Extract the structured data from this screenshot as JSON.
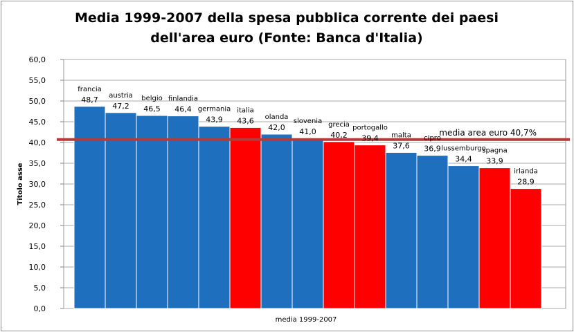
{
  "chart_data": {
    "type": "bar",
    "title_lines": [
      "Media 1999-2007 della spesa pubblica corrente dei paesi",
      "dell'area euro (Fonte: Banca d'Italia)"
    ],
    "xlabel": "media 1999-2007",
    "ylabel": "Titolo asse",
    "ylim": [
      0,
      60
    ],
    "yticks": [
      "0,0",
      "5,0",
      "10,0",
      "15,0",
      "20,0",
      "25,0",
      "30,0",
      "35,0",
      "40,0",
      "45,0",
      "50,0",
      "55,0",
      "60,0"
    ],
    "grid": true,
    "bars": [
      {
        "name": "francia",
        "value": 48.7,
        "label": "48,7",
        "color": "#1f6fbf"
      },
      {
        "name": "austria",
        "value": 47.2,
        "label": "47,2",
        "color": "#1f6fbf"
      },
      {
        "name": "belgio",
        "value": 46.5,
        "label": "46,5",
        "color": "#1f6fbf"
      },
      {
        "name": "finlandia",
        "value": 46.4,
        "label": "46,4",
        "color": "#1f6fbf"
      },
      {
        "name": "germania",
        "value": 43.9,
        "label": "43,9",
        "color": "#1f6fbf"
      },
      {
        "name": "italia",
        "value": 43.6,
        "label": "43,6",
        "color": "#ff0000"
      },
      {
        "name": "olanda",
        "value": 42.0,
        "label": "42,0",
        "color": "#1f6fbf"
      },
      {
        "name": "slovenia",
        "value": 41.0,
        "label": "41,0",
        "color": "#1f6fbf"
      },
      {
        "name": "grecia",
        "value": 40.2,
        "label": "40,2",
        "color": "#ff0000"
      },
      {
        "name": "portogallo",
        "value": 39.4,
        "label": "39,4",
        "color": "#ff0000"
      },
      {
        "name": "malta",
        "value": 37.6,
        "label": "37,6",
        "color": "#1f6fbf"
      },
      {
        "name": "cipro",
        "value": 36.9,
        "label": "36,9",
        "color": "#1f6fbf"
      },
      {
        "name": "lussemburgo",
        "value": 34.4,
        "label": "34,4",
        "color": "#1f6fbf"
      },
      {
        "name": "spagna",
        "value": 33.9,
        "label": "33,9",
        "color": "#ff0000"
      },
      {
        "name": "irlanda",
        "value": 28.9,
        "label": "28,9",
        "color": "#ff0000"
      }
    ],
    "reference_line": {
      "value": 40.7,
      "label": "media area euro 40,7%",
      "color": "#b23b3b"
    }
  }
}
